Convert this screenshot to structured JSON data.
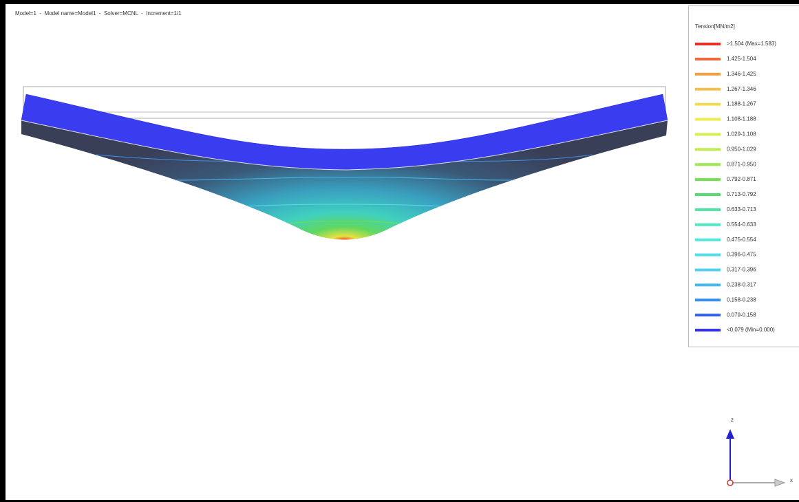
{
  "header": {
    "text": "Model=1  -  Model name=Model1  -  Solver=MCNL  -  Increment=1/1"
  },
  "legend": {
    "title": "Tension[MN/m2]",
    "items": [
      {
        "label": ">1.504 (Max=1.583)",
        "color": "#e8302a"
      },
      {
        "label": "1.425-1.504",
        "color": "#ee6a3a"
      },
      {
        "label": "1.346-1.425",
        "color": "#f0a044"
      },
      {
        "label": "1.267-1.346",
        "color": "#f2c052"
      },
      {
        "label": "1.188-1.267",
        "color": "#f0da52"
      },
      {
        "label": "1.108-1.188",
        "color": "#ecec52"
      },
      {
        "label": "1.029-1.108",
        "color": "#d8ee52"
      },
      {
        "label": "0.950-1.029",
        "color": "#c0ec52"
      },
      {
        "label": "0.871-0.950",
        "color": "#a0e852"
      },
      {
        "label": "0.792-0.871",
        "color": "#72e052"
      },
      {
        "label": "0.713-0.792",
        "color": "#52dc72"
      },
      {
        "label": "0.633-0.713",
        "color": "#52e0a2"
      },
      {
        "label": "0.554-0.633",
        "color": "#52e6c2"
      },
      {
        "label": "0.475-0.554",
        "color": "#52e6dc"
      },
      {
        "label": "0.396-0.475",
        "color": "#52dcec"
      },
      {
        "label": "0.317-0.396",
        "color": "#52d0ec"
      },
      {
        "label": "0.238-0.317",
        "color": "#48b8ec"
      },
      {
        "label": "0.158-0.238",
        "color": "#3c90ec"
      },
      {
        "label": "0.079-0.158",
        "color": "#3460e4"
      },
      {
        "label": "<0.079 (Min=0.000)",
        "color": "#3030e0"
      }
    ]
  },
  "axes": {
    "z": "z",
    "x": "x"
  }
}
